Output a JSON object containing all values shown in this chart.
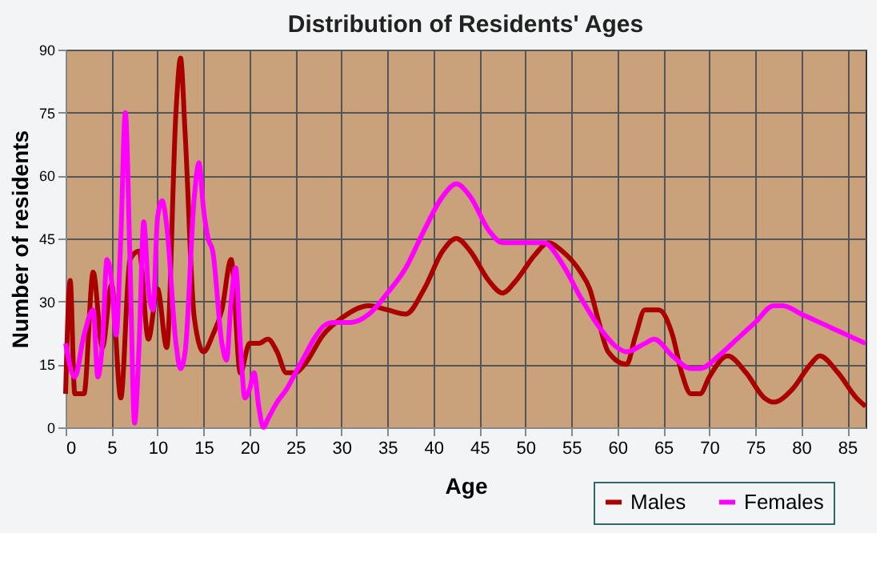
{
  "chart_data": {
    "type": "line",
    "title": "Distribution of Residents' Ages",
    "xlabel": "Age",
    "ylabel": "Number of residents",
    "xlim": [
      0,
      87
    ],
    "xticks": [
      0,
      5,
      10,
      15,
      20,
      25,
      30,
      35,
      40,
      45,
      50,
      55,
      60,
      65,
      70,
      75,
      80,
      85
    ],
    "ylim": [
      0,
      90
    ],
    "yticks": [
      0,
      15,
      30,
      45,
      60,
      75,
      90
    ],
    "grid": true,
    "legend": "bottom right",
    "series": [
      {
        "name": "Males",
        "color": "#aa0000",
        "x": [
          0,
          0.5,
          1,
          2,
          3,
          4,
          5,
          6,
          7,
          8,
          9,
          10,
          11,
          12,
          12.5,
          13,
          14,
          15,
          16,
          17,
          18,
          19,
          20,
          21,
          22,
          23,
          24,
          25,
          26,
          28,
          30,
          33,
          35,
          37,
          39,
          41,
          42.5,
          44,
          46,
          47.5,
          49,
          51,
          52.5,
          54,
          56,
          57,
          58,
          59,
          61,
          62,
          63,
          64.5,
          66,
          67,
          68,
          69,
          70,
          72,
          74,
          76,
          77,
          79,
          81,
          82,
          84,
          86,
          87
        ],
        "values": [
          8,
          35,
          8,
          8,
          37,
          19,
          34,
          7,
          40,
          42,
          21,
          33,
          19,
          75,
          88,
          70,
          26,
          18,
          22,
          28,
          40,
          13,
          20,
          20,
          21,
          18,
          13,
          13,
          15,
          22,
          26,
          29,
          28,
          27,
          33,
          42,
          45,
          42,
          35,
          32,
          35,
          41,
          44,
          42,
          37,
          33,
          25,
          18,
          15,
          22,
          28,
          28,
          22,
          13,
          8,
          8,
          12,
          17,
          13,
          7,
          6,
          9,
          15,
          17,
          13,
          7,
          5
        ]
      },
      {
        "name": "Females",
        "color": "#ff00ff",
        "x": [
          0,
          1,
          2,
          3,
          3.5,
          4,
          4.5,
          5,
          5.5,
          6,
          6.5,
          7,
          7.5,
          8,
          8.5,
          9,
          9.5,
          10,
          10.5,
          11,
          12,
          12.5,
          13,
          14,
          14.5,
          15,
          15.5,
          16,
          17,
          17.5,
          18,
          18.5,
          19,
          19.5,
          20,
          20.5,
          21,
          21.5,
          22,
          23,
          24,
          25,
          26,
          27,
          28,
          29,
          30,
          31,
          33,
          35,
          37,
          39,
          41,
          42.5,
          44,
          46,
          47.5,
          49,
          51,
          52,
          54,
          56,
          58,
          60,
          61,
          63,
          64,
          66,
          68,
          69,
          71,
          73,
          75,
          77,
          78,
          80,
          83,
          87
        ],
        "values": [
          20,
          12,
          22,
          28,
          12,
          20,
          40,
          35,
          22,
          45,
          75,
          40,
          1,
          20,
          49,
          33,
          28,
          50,
          54,
          48,
          20,
          14,
          18,
          55,
          63,
          52,
          45,
          42,
          20,
          16,
          30,
          38,
          20,
          7,
          9,
          13,
          5,
          0,
          2,
          6,
          9,
          13,
          17,
          21,
          24,
          25,
          25,
          25,
          27,
          32,
          38,
          47,
          55,
          58,
          55,
          47,
          44,
          44,
          44,
          44,
          39,
          31,
          24,
          19,
          18,
          20,
          21,
          17,
          14,
          14,
          17,
          21,
          25,
          29,
          29,
          27,
          24,
          20
        ]
      }
    ]
  }
}
